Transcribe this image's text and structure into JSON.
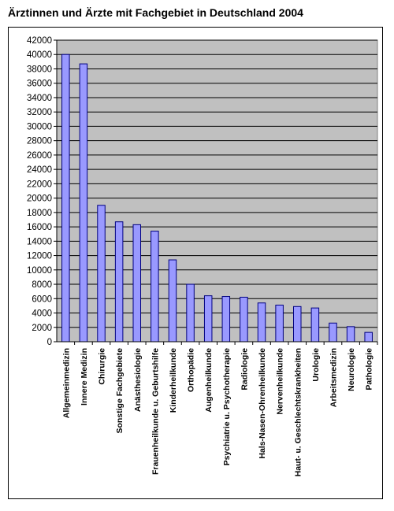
{
  "chart_data": {
    "type": "bar",
    "title": "Ärztinnen und Ärzte mit Fachgebiet in Deutschland 2004",
    "xlabel": "",
    "ylabel": "",
    "ylim": [
      0,
      42000
    ],
    "ytick_step": 2000,
    "grid": true,
    "legend": "none",
    "colors": {
      "bar_fill": "#9999ff",
      "bar_stroke": "#000080",
      "plot_bg": "#c0c0c0"
    },
    "categories": [
      "Allgemeinmedizin",
      "Innere Medizin",
      "Chirurgie",
      "Sonstige Fachgebiete",
      "Anästhesiologie",
      "Frauenheilkunde u. Geburtshilfe",
      "Kinderheilkunde",
      "Orthopädie",
      "Augenheilkunde",
      "Psychiatrie u. Psychotherapie",
      "Radiologie",
      "Hals-Nasen-Ohrenheilkunde",
      "Nervenheilkunde",
      "Haut- u. Geschlechtskrankheiten",
      "Urologie",
      "Arbeitsmedizin",
      "Neurologie",
      "Pathologie"
    ],
    "values": [
      40000,
      38700,
      19000,
      16700,
      16300,
      15400,
      11400,
      8000,
      6400,
      6300,
      6200,
      5400,
      5100,
      4900,
      4700,
      2600,
      2100,
      1300
    ]
  }
}
